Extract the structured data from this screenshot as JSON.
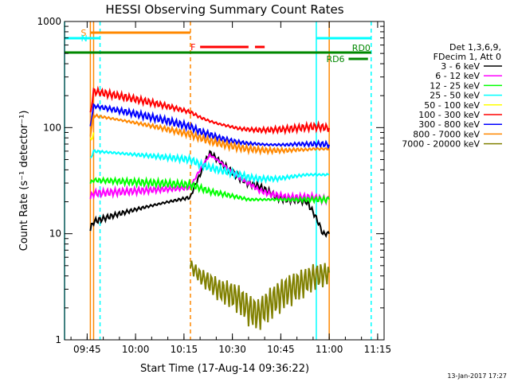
{
  "chart_data": {
    "type": "line",
    "title": "HESSI Observing Summary Count Rates",
    "xlabel": "Start Time (17-Aug-14 09:36:22)",
    "ylabel": "Count Rate (s⁻¹ detector⁻¹)",
    "y_scale": "log",
    "ylim": [
      1,
      1000
    ],
    "xlim": [
      "09:38",
      "11:17"
    ],
    "x_ticks": [
      "09:45",
      "10:00",
      "10:15",
      "10:30",
      "10:45",
      "11:00",
      "11:15"
    ],
    "y_ticks": [
      "1",
      "10",
      "100",
      "1000"
    ],
    "grid": false,
    "legend_placement": "right",
    "legend_header": [
      "Det 1,3,6,9,",
      "FDecim 1, Att 0"
    ],
    "stamp": "13-Jan-2017 17:27",
    "series": [
      {
        "name": "3 - 6 keV",
        "color": "#000000",
        "x": [
          "09:46",
          "09:47",
          "10:17",
          "10:20",
          "10:23",
          "10:26",
          "10:29",
          "10:32",
          "10:35",
          "10:38",
          "10:41",
          "10:44",
          "10:47",
          "10:50",
          "10:53",
          "10:55",
          "10:58",
          "11:00"
        ],
        "y": [
          11,
          13,
          22,
          36,
          58,
          48,
          40,
          34,
          30,
          28,
          25,
          22,
          21,
          21,
          20,
          16,
          10,
          10
        ]
      },
      {
        "name": "6 - 12 keV",
        "color": "#ff00ff",
        "x": [
          "09:46",
          "09:47",
          "10:17",
          "10:20",
          "10:23",
          "10:26",
          "10:29",
          "10:32",
          "10:35",
          "10:38",
          "10:41",
          "10:44",
          "10:47",
          "10:50",
          "10:53",
          "10:55",
          "10:58",
          "11:00"
        ],
        "y": [
          22,
          24,
          27,
          40,
          55,
          48,
          40,
          34,
          30,
          26,
          24,
          23,
          22,
          22,
          22,
          22,
          21,
          21
        ]
      },
      {
        "name": "12 - 25 keV",
        "color": "#00ff00",
        "x": [
          "09:46",
          "09:47",
          "10:17",
          "10:20",
          "10:23",
          "10:26",
          "10:29",
          "10:32",
          "10:35",
          "10:38",
          "10:41",
          "10:44",
          "10:47",
          "10:50",
          "10:53",
          "10:55",
          "10:58",
          "11:00"
        ],
        "y": [
          30,
          32,
          29,
          27,
          25,
          24,
          23,
          22,
          21,
          21,
          21,
          21,
          21,
          21,
          21,
          21,
          21,
          21
        ]
      },
      {
        "name": "25 - 50 keV",
        "color": "#00ffff",
        "x": [
          "09:46",
          "09:47",
          "10:17",
          "10:20",
          "10:23",
          "10:26",
          "10:29",
          "10:32",
          "10:35",
          "10:38",
          "10:41",
          "10:44",
          "10:47",
          "10:50",
          "10:53",
          "10:55",
          "10:58",
          "11:00"
        ],
        "y": [
          50,
          60,
          50,
          45,
          42,
          40,
          38,
          36,
          34,
          33,
          33,
          33,
          34,
          35,
          36,
          36,
          36,
          36
        ]
      },
      {
        "name": "50 - 100 keV",
        "color": "#ffff00",
        "x": [
          "09:46",
          "09:47"
        ],
        "y": [
          75,
          90
        ]
      },
      {
        "name": "100 - 300 keV",
        "color": "#ff0000",
        "x": [
          "09:46",
          "09:47",
          "10:17",
          "10:20",
          "10:23",
          "10:26",
          "10:29",
          "10:32",
          "10:35",
          "10:38",
          "10:41",
          "10:44",
          "10:47",
          "10:50",
          "10:53",
          "10:55",
          "10:58",
          "11:00"
        ],
        "y": [
          130,
          220,
          140,
          125,
          115,
          108,
          103,
          98,
          96,
          95,
          95,
          96,
          97,
          99,
          101,
          102,
          101,
          99
        ]
      },
      {
        "name": "300 - 800 keV",
        "color": "#0000ff",
        "x": [
          "09:46",
          "09:47",
          "10:17",
          "10:20",
          "10:23",
          "10:26",
          "10:29",
          "10:32",
          "10:35",
          "10:38",
          "10:41",
          "10:44",
          "10:47",
          "10:50",
          "10:53",
          "10:55",
          "10:58",
          "11:00"
        ],
        "y": [
          100,
          160,
          102,
          92,
          86,
          80,
          76,
          73,
          71,
          70,
          69,
          69,
          69,
          70,
          70,
          70,
          70,
          69
        ]
      },
      {
        "name": "800 - 7000 keV",
        "color": "#ff8800",
        "x": [
          "09:46",
          "09:47",
          "10:17",
          "10:20",
          "10:23",
          "10:26",
          "10:29",
          "10:32",
          "10:35",
          "10:38",
          "10:41",
          "10:44",
          "10:47",
          "10:50",
          "10:53",
          "10:55",
          "10:58",
          "11:00"
        ],
        "y": [
          85,
          130,
          86,
          80,
          75,
          71,
          68,
          65,
          63,
          62,
          61,
          61,
          61,
          62,
          62,
          63,
          63,
          63
        ]
      },
      {
        "name": "7000 - 20000 keV",
        "color": "#808000",
        "x": [
          "10:17",
          "10:20",
          "10:23",
          "10:26",
          "10:29",
          "10:32",
          "10:35",
          "10:38",
          "10:41",
          "10:44",
          "10:47",
          "10:50",
          "10:53",
          "10:55",
          "10:58",
          "11:00"
        ],
        "y": [
          5,
          4,
          3.5,
          3,
          2.8,
          2.5,
          2,
          1.8,
          2.2,
          2.6,
          3,
          3.3,
          3.7,
          4,
          4.2,
          4.3
        ]
      }
    ],
    "flags": [
      {
        "label": "S",
        "color": "#ff8800",
        "start": "09:46",
        "end": "10:17"
      },
      {
        "label": "N",
        "color": "#00ffff",
        "start": "09:38",
        "end": "09:49"
      },
      {
        "label": "N",
        "color": "#00ffff",
        "start": "10:56",
        "end": "11:13"
      },
      {
        "label": "F",
        "color": "#ff0000",
        "start": "10:20",
        "end": "10:35"
      },
      {
        "label": "F",
        "color": "#ff0000",
        "start": "10:37",
        "end": "10:40"
      },
      {
        "label": "RD0",
        "color": "#008800",
        "start": "09:38",
        "end": "11:13"
      },
      {
        "label": "RD6",
        "color": "#008800",
        "start": "11:06",
        "end": "11:12"
      }
    ],
    "vertical_markers": [
      {
        "x": "09:38",
        "color": "#00ffff",
        "style": "solid"
      },
      {
        "x": "09:49",
        "color": "#00ffff",
        "style": "dashed"
      },
      {
        "x": "10:56",
        "color": "#00ffff",
        "style": "solid"
      },
      {
        "x": "11:13",
        "color": "#00ffff",
        "style": "dashed"
      },
      {
        "x": "09:46",
        "color": "#ff8800",
        "style": "solid"
      },
      {
        "x": "09:47",
        "color": "#ff8800",
        "style": "solid"
      },
      {
        "x": "10:17",
        "color": "#ff8800",
        "style": "dashed"
      },
      {
        "x": "11:00",
        "color": "#ff8800",
        "style": "solid"
      }
    ]
  }
}
